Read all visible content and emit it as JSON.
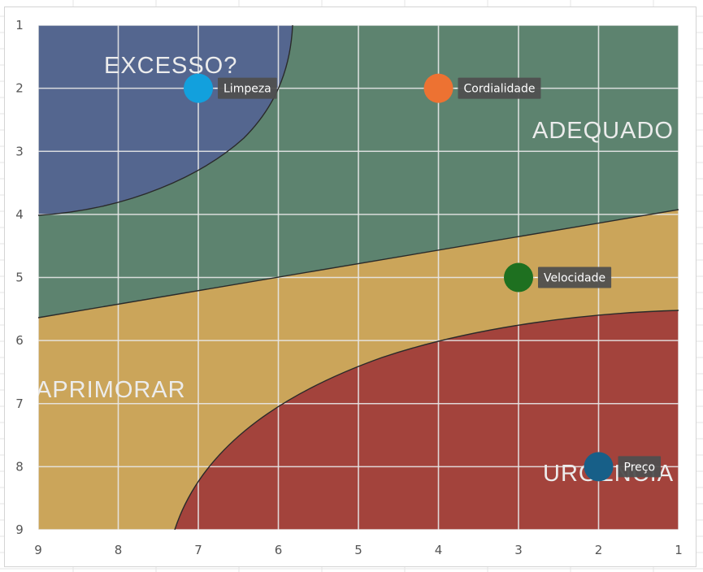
{
  "chart_data": {
    "type": "scatter",
    "title": "",
    "xlabel": "",
    "ylabel": "",
    "x_reversed": true,
    "y_reversed": true,
    "xlim": [
      1,
      9
    ],
    "ylim": [
      1,
      9
    ],
    "x_ticks": [
      "9",
      "8",
      "7",
      "6",
      "5",
      "4",
      "3",
      "2",
      "1"
    ],
    "y_ticks": [
      "1",
      "2",
      "3",
      "4",
      "5",
      "6",
      "7",
      "8",
      "9"
    ],
    "grid": true,
    "zones": [
      {
        "label": "EXCESSO?",
        "color": "#54668f"
      },
      {
        "label": "ADEQUADO",
        "color": "#5d836f"
      },
      {
        "label": "APRIMORAR",
        "color": "#cba55a"
      },
      {
        "label": "URGÊNCIA",
        "color": "#a3433c"
      }
    ],
    "points": [
      {
        "label": "Limpeza",
        "x": 7,
        "y": 2,
        "color": "#12a0dd"
      },
      {
        "label": "Cordialidade",
        "x": 4,
        "y": 2,
        "color": "#ed7232"
      },
      {
        "label": "Velocidade",
        "x": 3,
        "y": 5,
        "color": "#1e7020"
      },
      {
        "label": "Preço",
        "x": 2,
        "y": 8,
        "color": "#175f88"
      }
    ]
  }
}
